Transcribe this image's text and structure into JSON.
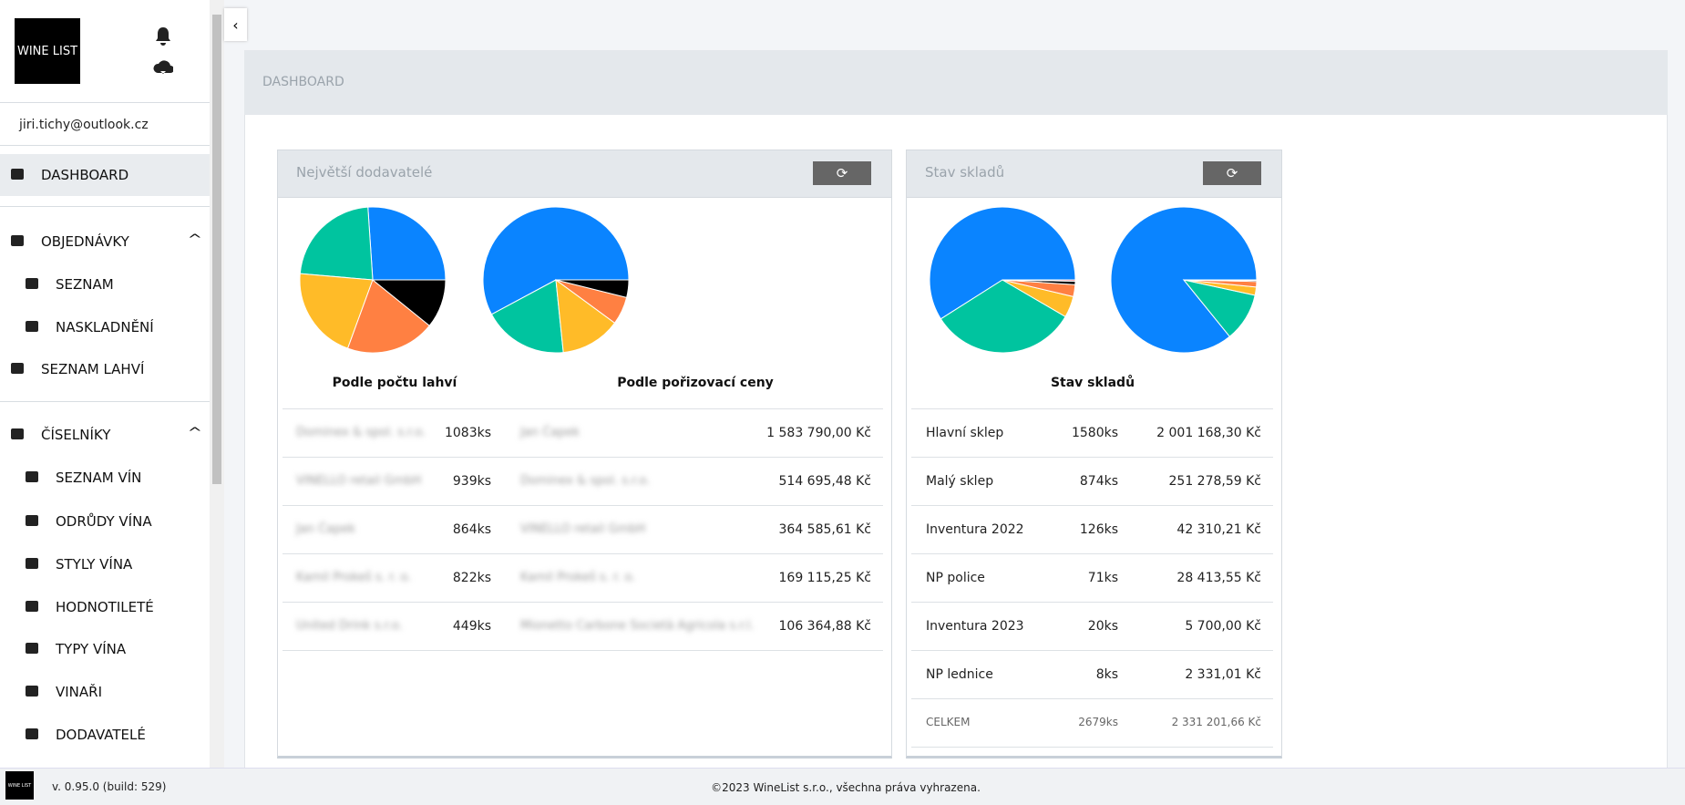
{
  "sidebar": {
    "logo_text": "WINE LIST",
    "user_email": "jiri.tichy@outlook.cz",
    "menu": [
      {
        "label": "DASHBOARD",
        "level": 0
      },
      {
        "label": "OBJEDNÁVKY",
        "level": 0,
        "expanded": true
      },
      {
        "label": "SEZNAM",
        "level": 1
      },
      {
        "label": "NASKLADNĚNÍ",
        "level": 1
      },
      {
        "label": "SEZNAM LAHVÍ",
        "level": 0
      },
      {
        "label": "ČÍSELNÍKY",
        "level": 0,
        "expanded": true
      },
      {
        "label": "SEZNAM VÍN",
        "level": 1
      },
      {
        "label": "ODRŮDY VÍNA",
        "level": 1
      },
      {
        "label": "STYLY VÍNA",
        "level": 1
      },
      {
        "label": "HODNOTILETÉ",
        "level": 1
      },
      {
        "label": "TYPY VÍNA",
        "level": 1
      },
      {
        "label": "VINAŘI",
        "level": 1
      },
      {
        "label": "DODAVATELÉ",
        "level": 1
      }
    ],
    "version": "v. 0.95.0 (build: 529)"
  },
  "header": {
    "title": "DASHBOARD"
  },
  "footer": {
    "copyright": "©2023 WineList s.r.o., všechna práva vyhrazena."
  },
  "cards": [
    {
      "title": "Největší dodavatelé",
      "charts": [
        {
          "type": "pie",
          "caption": "Podle počtu lahví",
          "values": [
            1083,
            939,
            864,
            822,
            449
          ],
          "colors": [
            "#0a84ff",
            "#00c49f",
            "#ffbb28",
            "#ff8042",
            "#000000"
          ]
        },
        {
          "type": "pie",
          "caption": "Podle pořizovací ceny",
          "values": [
            1583790.0,
            514695.48,
            364585.61,
            169115.25,
            106364.88
          ],
          "colors": [
            "#0a84ff",
            "#00c49f",
            "#ffbb28",
            "#ff8042",
            "#000000"
          ]
        }
      ],
      "rows": [
        [
          "Dominex & spol. s.r.o.",
          "1083ks",
          "Jan Čapek",
          "1 583 790,00 Kč"
        ],
        [
          "VINELLO retail GmbH",
          "939ks",
          "Dominex & spol. s.r.o.",
          "514 695,48 Kč"
        ],
        [
          "Jan Čapek",
          "864ks",
          "VINELLO retail GmbH",
          "364 585,61 Kč"
        ],
        [
          "Kamil Prokeš s. r. o.",
          "822ks",
          "Kamil Prokeš s. r. o.",
          "169 115,25 Kč"
        ],
        [
          "United Drink s.r.o.",
          "449ks",
          "Mionetto Carbone Società Agricola s.r.l.",
          "106 364,88 Kč"
        ]
      ]
    },
    {
      "title": "Stav skladů",
      "charts": [
        {
          "type": "pie",
          "caption": "Stav skladů",
          "values": [
            1580,
            874,
            126,
            71,
            20,
            8
          ],
          "colors": [
            "#0a84ff",
            "#00c49f",
            "#ffbb28",
            "#ff8042",
            "#000000",
            "#e8334a"
          ]
        },
        {
          "type": "pie",
          "values": [
            2001168.3,
            251278.59,
            42310.21,
            28413.55,
            5700.0,
            2331.01
          ],
          "colors": [
            "#0a84ff",
            "#00c49f",
            "#ffbb28",
            "#ff8042",
            "#000000",
            "#e8334a"
          ]
        }
      ],
      "rows": [
        [
          "Hlavní sklep",
          "1580ks",
          "2 001 168,30 Kč"
        ],
        [
          "Malý sklep",
          "874ks",
          "251 278,59 Kč"
        ],
        [
          "Inventura 2022",
          "126ks",
          "42 310,21 Kč"
        ],
        [
          "NP police",
          "71ks",
          "28 413,55 Kč"
        ],
        [
          "Inventura 2023",
          "20ks",
          "5 700,00 Kč"
        ],
        [
          "NP lednice",
          "8ks",
          "2 331,01 Kč"
        ]
      ],
      "total": [
        "CELKEM",
        "2679ks",
        "2 331 201,66 Kč"
      ]
    }
  ]
}
